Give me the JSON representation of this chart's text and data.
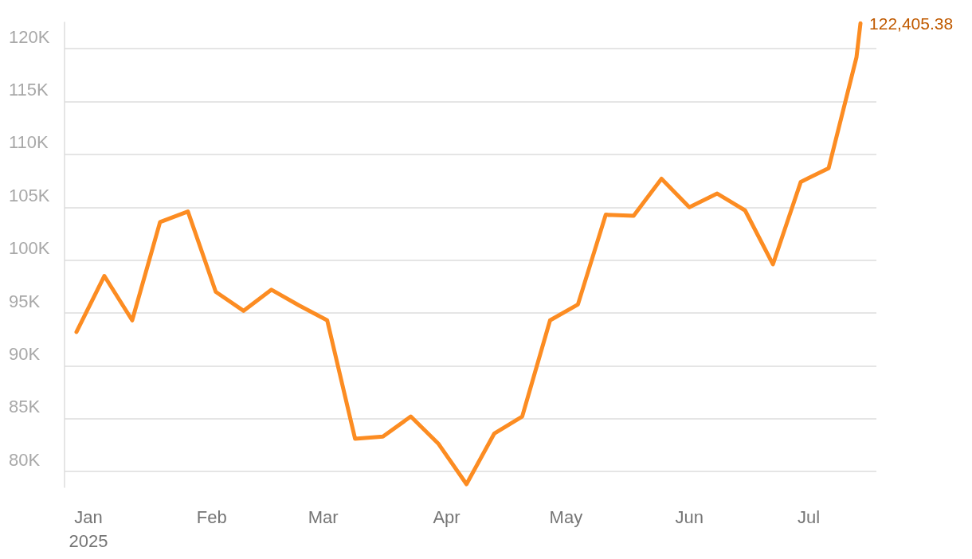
{
  "chart_data": {
    "type": "line",
    "x": [
      "2024-12-29",
      "2025-01-05",
      "2025-01-12",
      "2025-01-19",
      "2025-01-26",
      "2025-02-02",
      "2025-02-09",
      "2025-02-16",
      "2025-02-23",
      "2025-03-02",
      "2025-03-09",
      "2025-03-16",
      "2025-03-23",
      "2025-03-30",
      "2025-04-06",
      "2025-04-13",
      "2025-04-20",
      "2025-04-27",
      "2025-05-04",
      "2025-05-11",
      "2025-05-18",
      "2025-05-25",
      "2025-06-01",
      "2025-06-08",
      "2025-06-15",
      "2025-06-22",
      "2025-06-29",
      "2025-07-06",
      "2025-07-13",
      "2025-07-14"
    ],
    "series": [
      {
        "color": "#fc8c22",
        "values": [
          93200,
          98500,
          94300,
          103600,
          104600,
          97000,
          95200,
          97200,
          95700,
          94300,
          83100,
          83300,
          85200,
          82600,
          78800,
          83600,
          85200,
          94300,
          95800,
          104300,
          104200,
          107700,
          105000,
          106300,
          104700,
          99600,
          107400,
          108700,
          119200,
          122405.38
        ],
        "value_labels": [
          null,
          null,
          null,
          null,
          null,
          null,
          null,
          null,
          null,
          null,
          null,
          null,
          null,
          null,
          null,
          null,
          null,
          null,
          null,
          null,
          null,
          null,
          null,
          null,
          null,
          null,
          null,
          null,
          null,
          "122,405.38"
        ]
      }
    ],
    "yticks": [
      {
        "value": 80000,
        "label": "80K"
      },
      {
        "value": 85000,
        "label": "85K"
      },
      {
        "value": 90000,
        "label": "90K"
      },
      {
        "value": 95000,
        "label": "95K"
      },
      {
        "value": 100000,
        "label": "100K"
      },
      {
        "value": 105000,
        "label": "105K"
      },
      {
        "value": 110000,
        "label": "110K"
      },
      {
        "value": 115000,
        "label": "115K"
      },
      {
        "value": 120000,
        "label": "120K"
      }
    ],
    "xlim": [
      "2024-12-26",
      "2025-07-18"
    ],
    "xticks": [
      {
        "value": "2025-01-01",
        "label": "Jan\n2025"
      },
      {
        "value": "2025-02-01",
        "label": "Feb"
      },
      {
        "value": "2025-03-01",
        "label": "Mar"
      },
      {
        "value": "2025-04-01",
        "label": "Apr"
      },
      {
        "value": "2025-05-01",
        "label": "May"
      },
      {
        "value": "2025-06-01",
        "label": "Jun"
      },
      {
        "value": "2025-07-01",
        "label": "Jul"
      }
    ],
    "ylim": [
      78500,
      122500
    ],
    "grid": "y",
    "marker": "none",
    "line_style": "solid"
  }
}
